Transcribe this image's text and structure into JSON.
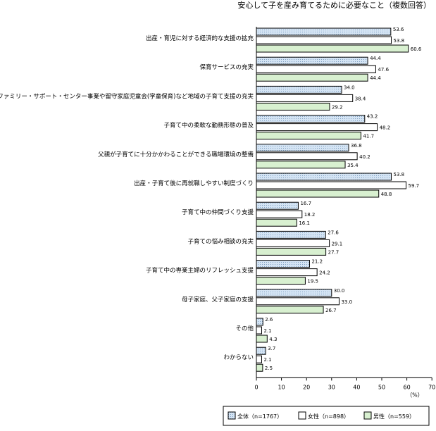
{
  "chart_data": {
    "type": "bar",
    "orientation": "horizontal",
    "title": "安心して子を産み育てるために必要なこと（複数回答）",
    "xlabel": "（%）",
    "xlim": [
      0,
      70
    ],
    "xticks": [
      0,
      10,
      20,
      30,
      40,
      50,
      60,
      70
    ],
    "grid": false,
    "legend_position": "bottom",
    "categories": [
      "出産・育児に対する経済的な支援の拡充",
      "保育サービスの充実",
      "ファミリー・サポート・センター事業や留守家庭児童会(学童保育)など地域の子育て支援の充実",
      "子育て中の柔軟な勤務形態の普及",
      "父親が子育てに十分かかわることができる職場環境の整備",
      "出産・子育て後に再就職しやすい制度づくり",
      "子育て中の仲間づくり支援",
      "子育ての悩み相談の充実",
      "子育て中の専業主婦のリフレッシュ支援",
      "母子家庭、父子家庭の支援",
      "その他",
      "わからない"
    ],
    "series": [
      {
        "name": "全体（n=1767）",
        "color": "#d0e0f0",
        "pattern": "dots",
        "values": [
          53.6,
          44.4,
          34.0,
          43.2,
          36.8,
          53.8,
          16.7,
          27.6,
          21.2,
          30.0,
          2.6,
          3.7
        ]
      },
      {
        "name": "女性（n=898）",
        "color": "#ffffff",
        "pattern": "none",
        "values": [
          53.8,
          47.6,
          38.4,
          48.2,
          40.2,
          59.7,
          18.2,
          29.1,
          24.2,
          33.0,
          2.1,
          2.1
        ]
      },
      {
        "name": "男性（n=559）",
        "color": "#d8f0d0",
        "pattern": "none",
        "values": [
          60.6,
          44.4,
          29.2,
          41.7,
          35.4,
          48.8,
          16.1,
          27.7,
          19.5,
          26.7,
          4.3,
          2.5
        ]
      }
    ],
    "value_labels": [
      [
        "53.6",
        "44.4",
        "34.0",
        "43.2",
        "36.8",
        "53.8",
        "16.7",
        "27.6",
        "21.2",
        "30.0",
        "2.6",
        "3.7"
      ],
      [
        "53.8",
        "47.6",
        "38.4",
        "48.2",
        "40.2",
        "59.7",
        "18.2",
        "29.1",
        "24.2",
        "33.0",
        "2.1",
        "2.1"
      ],
      [
        "60.6",
        "44.4",
        "29.2",
        "41.7",
        "35.4",
        "48.8",
        "16.1",
        "27.7",
        "19.5",
        "26.7",
        "4.3",
        "2.5"
      ]
    ]
  }
}
